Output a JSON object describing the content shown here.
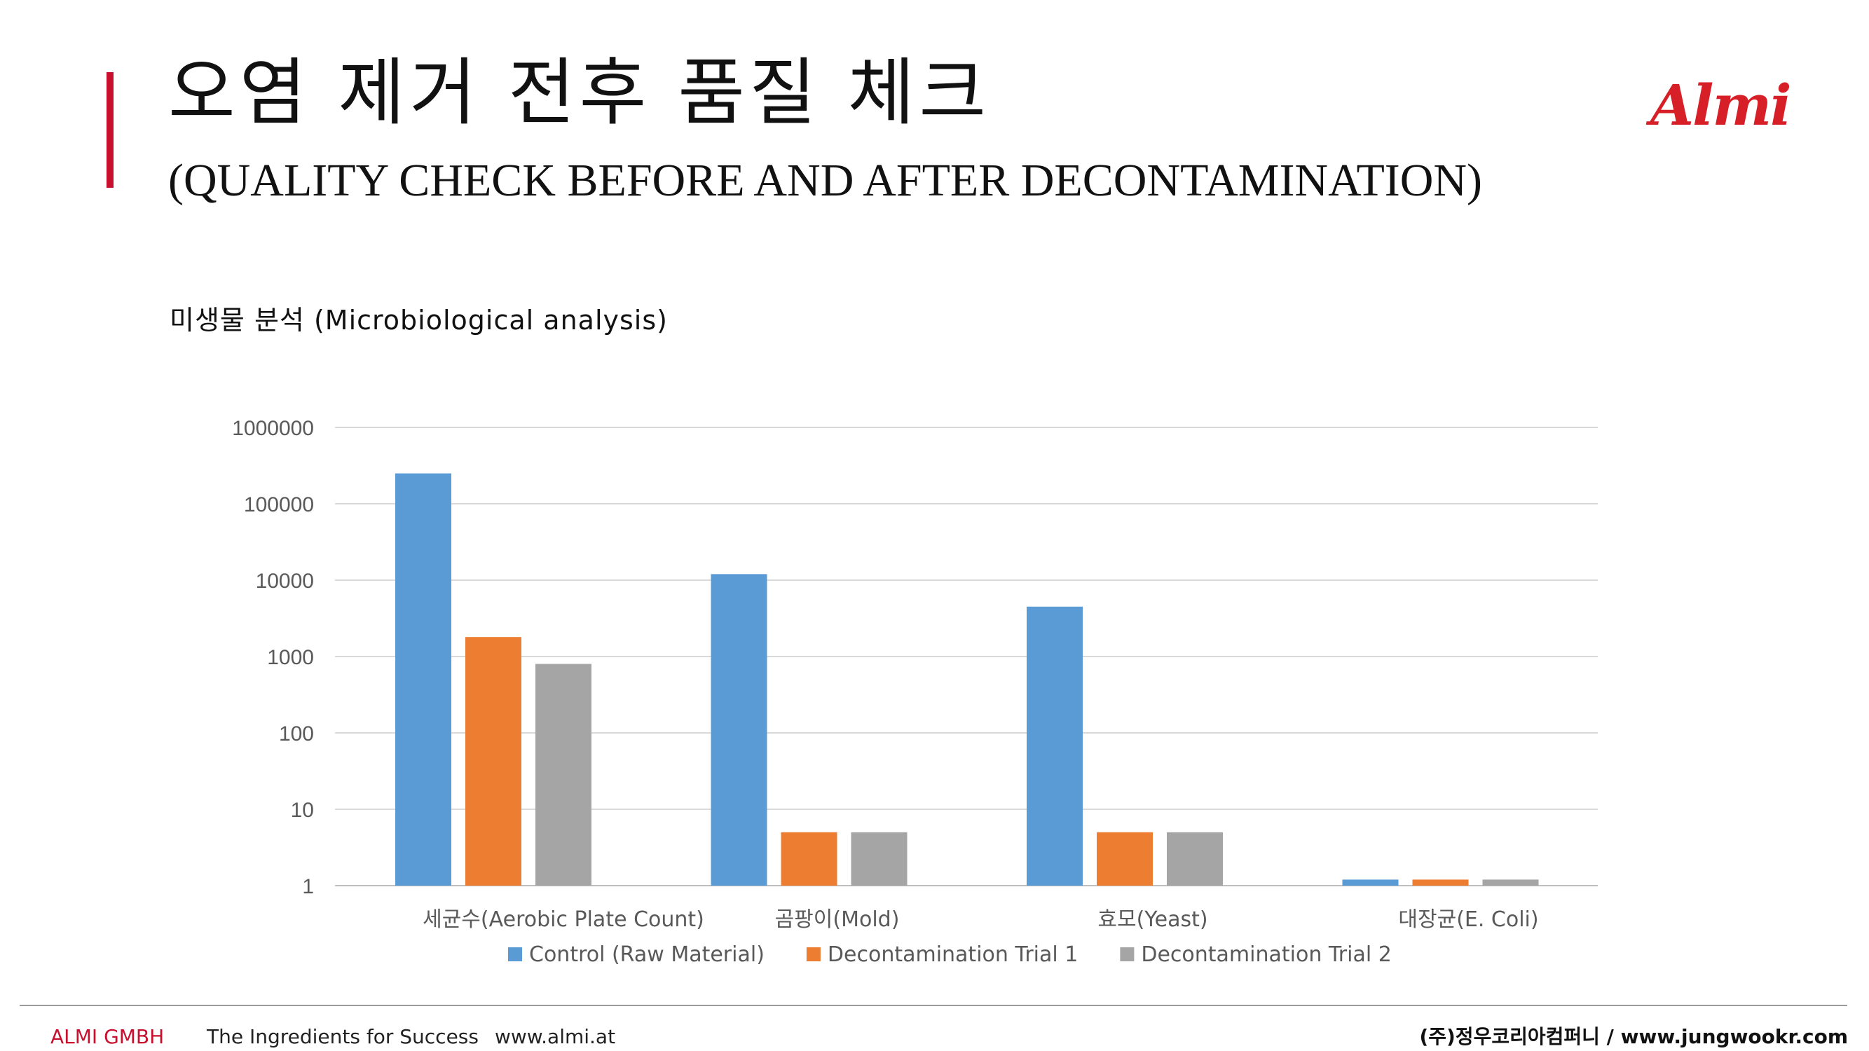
{
  "header": {
    "title_ko": "오염 제거 전후 품질 체크",
    "title_en": "(QUALITY CHECK BEFORE AND AFTER DECONTAMINATION)",
    "logo_text": "Almi",
    "accent_color": "#c8102e"
  },
  "section": {
    "title": "미생물 분석 (Microbiological analysis)"
  },
  "chart_data": {
    "type": "bar",
    "title": "",
    "xlabel": "",
    "ylabel": "",
    "yscale": "log",
    "ylim": [
      1,
      1000000
    ],
    "yticks": [
      "1000000",
      "100000",
      "10000",
      "1000",
      "100",
      "10",
      "1"
    ],
    "ytick_values": [
      1000000,
      100000,
      10000,
      1000,
      100,
      10,
      1
    ],
    "categories": [
      "세균수(Aerobic Plate Count)",
      "곰팡이(Mold)",
      "효모(Yeast)",
      "대장균(E. Coli)"
    ],
    "grid": true,
    "legend_position": "bottom",
    "series": [
      {
        "name": "Control (Raw Material)",
        "color": "#5b9bd5",
        "values": [
          250000,
          12000,
          4500,
          1.2
        ]
      },
      {
        "name": "Decontamination Trial 1",
        "color": "#ed7d31",
        "values": [
          1800,
          5,
          5,
          1.2
        ]
      },
      {
        "name": "Decontamination Trial 2",
        "color": "#a5a5a5",
        "values": [
          800,
          5,
          5,
          1.2
        ]
      }
    ]
  },
  "footer": {
    "company": "ALMI GMBH",
    "slogan": "The Ingredients for Success",
    "url": "www.almi.at",
    "partner": "(주)정우코리아컴퍼니 / www.jungwookr.com"
  }
}
